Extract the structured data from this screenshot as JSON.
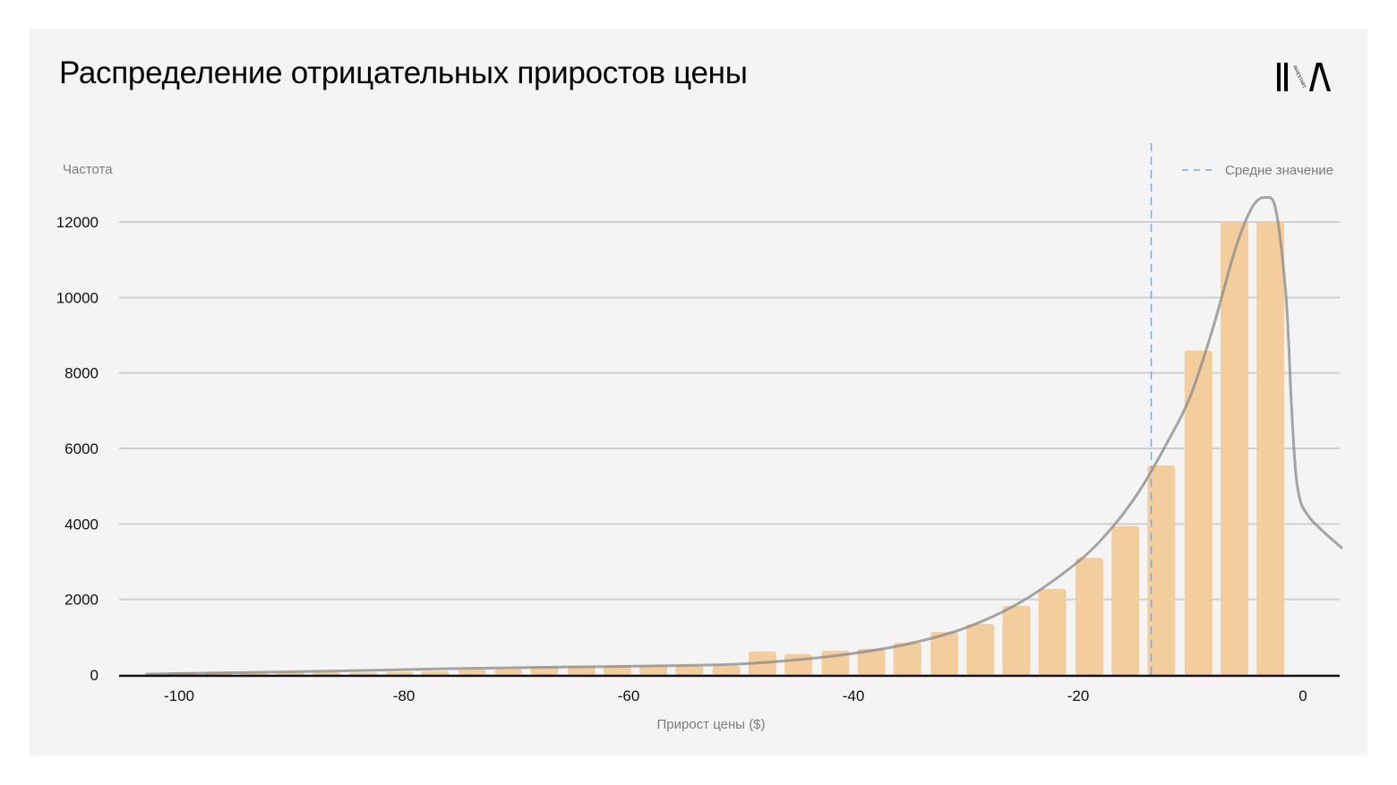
{
  "header": {
    "title": "Распределение отрицательных приростов цены",
    "logo_text": "INVESTART"
  },
  "colors": {
    "background": "#f4f4f4",
    "bar": "#f3cd9c",
    "curve": "#8a8a8a",
    "mean_line": "#7aa7ee",
    "grid": "#cfcfcf",
    "axis": "#111111",
    "muted_text": "#7b7b7b"
  },
  "chart_data": {
    "type": "bar",
    "title": "Распределение отрицательных приростов цены",
    "xlabel": "Прирост цены ($)",
    "ylabel": "Частота",
    "xlim": [
      -105,
      3
    ],
    "ylim": [
      0,
      12000
    ],
    "x_ticks": [
      -100,
      -80,
      -60,
      -40,
      -20,
      0
    ],
    "y_ticks": [
      0,
      2000,
      4000,
      6000,
      8000,
      10000,
      12000
    ],
    "grid": true,
    "legend": {
      "position": "top-right",
      "entries": [
        {
          "label": "Средне значение",
          "style": "dashed",
          "color": "#7aa7ee"
        }
      ]
    },
    "mean_value": -13.5,
    "bin_width": 3.23,
    "bars": [
      {
        "x": -99.8,
        "value": 70
      },
      {
        "x": -96.5,
        "value": 70
      },
      {
        "x": -93.3,
        "value": 70
      },
      {
        "x": -90.1,
        "value": 70
      },
      {
        "x": -86.9,
        "value": 70
      },
      {
        "x": -83.6,
        "value": 60
      },
      {
        "x": -80.4,
        "value": 80
      },
      {
        "x": -77.2,
        "value": 100
      },
      {
        "x": -73.9,
        "value": 140
      },
      {
        "x": -70.7,
        "value": 160
      },
      {
        "x": -67.5,
        "value": 230
      },
      {
        "x": -64.2,
        "value": 240
      },
      {
        "x": -61.0,
        "value": 250
      },
      {
        "x": -57.8,
        "value": 250
      },
      {
        "x": -54.6,
        "value": 250
      },
      {
        "x": -51.3,
        "value": 240
      },
      {
        "x": -48.1,
        "value": 620
      },
      {
        "x": -44.9,
        "value": 550
      },
      {
        "x": -41.6,
        "value": 640
      },
      {
        "x": -38.4,
        "value": 690
      },
      {
        "x": -35.2,
        "value": 850
      },
      {
        "x": -31.9,
        "value": 1140
      },
      {
        "x": -28.7,
        "value": 1350
      },
      {
        "x": -25.5,
        "value": 1830
      },
      {
        "x": -22.3,
        "value": 2280
      },
      {
        "x": -19.0,
        "value": 3100
      },
      {
        "x": -15.8,
        "value": 3940
      },
      {
        "x": -12.6,
        "value": 5550
      },
      {
        "x": -9.3,
        "value": 8590
      },
      {
        "x": -6.1,
        "value": 12000
      },
      {
        "x": -2.9,
        "value": 12000
      }
    ],
    "kde_curve": [
      [
        -103,
        20
      ],
      [
        -95,
        60
      ],
      [
        -85,
        110
      ],
      [
        -75,
        170
      ],
      [
        -65,
        210
      ],
      [
        -55,
        250
      ],
      [
        -50,
        290
      ],
      [
        -45,
        400
      ],
      [
        -40,
        570
      ],
      [
        -35,
        830
      ],
      [
        -30,
        1250
      ],
      [
        -25,
        1950
      ],
      [
        -20,
        3000
      ],
      [
        -17,
        3900
      ],
      [
        -14.5,
        4900
      ],
      [
        -12,
        6200
      ],
      [
        -10,
        7400
      ],
      [
        -8,
        9200
      ],
      [
        -6,
        11300
      ],
      [
        -4.5,
        12400
      ],
      [
        -3.3,
        12650
      ],
      [
        -2.4,
        12300
      ],
      [
        -1.5,
        10000
      ],
      [
        -1.0,
        7000
      ],
      [
        -0.5,
        5000
      ],
      [
        0.5,
        4200
      ],
      [
        3.5,
        3350
      ]
    ]
  }
}
